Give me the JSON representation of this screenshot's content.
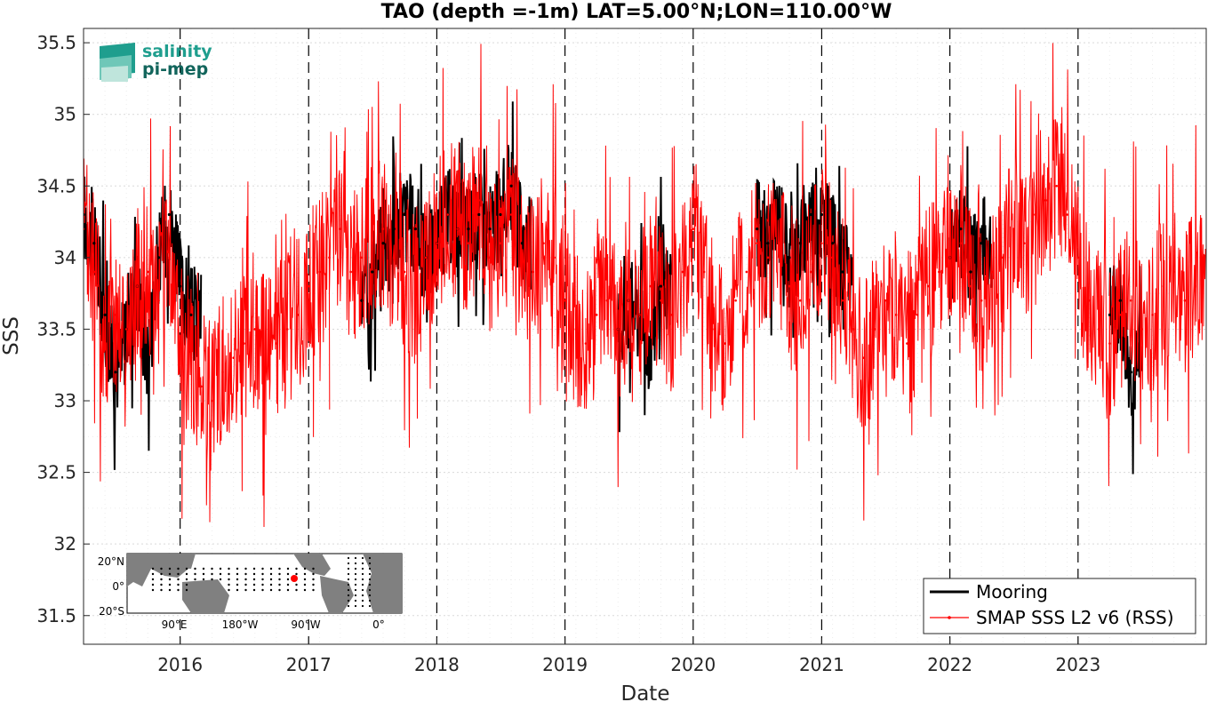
{
  "chart_data": {
    "type": "line",
    "title": "TAO (depth =-1m) LAT=5.00°N;LON=110.00°W",
    "xlabel": "Date",
    "ylabel": "SSS",
    "xlim": [
      "2015-04-01",
      "2024-01-01"
    ],
    "ylim": [
      31.3,
      35.6
    ],
    "x_ticks": [
      "2016",
      "2017",
      "2018",
      "2019",
      "2020",
      "2021",
      "2022",
      "2023"
    ],
    "y_ticks": [
      "31.5",
      "32",
      "32.5",
      "33",
      "33.5",
      "34",
      "34.5",
      "35",
      "35.5"
    ],
    "year_boundaries": [
      "2016-01-01",
      "2017-01-01",
      "2018-01-01",
      "2019-01-01",
      "2020-01-01",
      "2021-01-01",
      "2022-01-01",
      "2023-01-01"
    ],
    "grid": true,
    "legend_position": "bottom-right",
    "series": [
      {
        "name": "Mooring",
        "color": "#000000",
        "x": [
          "2015-04-01",
          "2015-05-01",
          "2015-06-01",
          "2015-07-01",
          "2015-08-01",
          "2015-09-01",
          "2015-10-01",
          "2015-11-01",
          "2015-12-01",
          "2016-01-01",
          "2016-02-01",
          "2017-06-01",
          "2017-07-01",
          "2017-08-01",
          "2017-09-01",
          "2017-10-01",
          "2017-11-01",
          "2017-12-01",
          "2018-01-01",
          "2018-02-01",
          "2018-03-01",
          "2018-04-01",
          "2018-05-01",
          "2018-06-01",
          "2018-07-01",
          "2018-08-01",
          "2018-09-01",
          "2019-06-01",
          "2019-07-01",
          "2019-08-01",
          "2019-09-01",
          "2019-10-01",
          "2020-07-01",
          "2020-08-01",
          "2020-09-01",
          "2020-10-01",
          "2020-11-01",
          "2020-12-01",
          "2021-01-01",
          "2021-02-01",
          "2021-03-01",
          "2022-01-01",
          "2022-02-01",
          "2022-03-01",
          "2022-04-01",
          "2023-04-01",
          "2023-05-01",
          "2023-06-01"
        ],
        "y": [
          34.3,
          34.1,
          33.6,
          33.2,
          33.5,
          33.8,
          33.3,
          34.0,
          34.3,
          33.8,
          33.6,
          33.7,
          33.9,
          34.1,
          34.2,
          34.3,
          34.2,
          34.0,
          34.1,
          34.3,
          34.2,
          34.2,
          34.3,
          34.2,
          34.3,
          34.5,
          34.1,
          33.5,
          33.7,
          33.6,
          33.4,
          33.8,
          34.2,
          34.1,
          34.3,
          34.0,
          34.1,
          34.3,
          34.3,
          34.1,
          33.9,
          34.0,
          34.2,
          33.9,
          34.1,
          33.6,
          33.7,
          33.2
        ]
      },
      {
        "name": "SMAP SSS L2 v6 (RSS)",
        "color": "#ff0000",
        "x": [
          "2015-04-01",
          "2015-05-01",
          "2015-06-01",
          "2015-07-01",
          "2015-08-01",
          "2015-09-01",
          "2015-10-01",
          "2015-11-01",
          "2015-12-01",
          "2016-01-01",
          "2016-02-01",
          "2016-03-01",
          "2016-04-01",
          "2016-05-01",
          "2016-06-01",
          "2016-07-01",
          "2016-08-01",
          "2016-09-01",
          "2016-10-01",
          "2016-11-01",
          "2016-12-01",
          "2017-01-01",
          "2017-02-01",
          "2017-03-01",
          "2017-04-01",
          "2017-05-01",
          "2017-06-01",
          "2017-07-01",
          "2017-08-01",
          "2017-09-01",
          "2017-10-01",
          "2017-11-01",
          "2017-12-01",
          "2018-01-01",
          "2018-02-01",
          "2018-03-01",
          "2018-04-01",
          "2018-05-01",
          "2018-06-01",
          "2018-07-01",
          "2018-08-01",
          "2018-09-01",
          "2018-10-01",
          "2018-11-01",
          "2018-12-01",
          "2019-01-01",
          "2019-02-01",
          "2019-03-01",
          "2019-04-01",
          "2019-05-01",
          "2019-06-01",
          "2019-07-01",
          "2019-08-01",
          "2019-09-01",
          "2019-10-01",
          "2019-11-01",
          "2019-12-01",
          "2020-01-01",
          "2020-02-01",
          "2020-03-01",
          "2020-04-01",
          "2020-05-01",
          "2020-06-01",
          "2020-07-01",
          "2020-08-01",
          "2020-09-01",
          "2020-10-01",
          "2020-11-01",
          "2020-12-01",
          "2021-01-01",
          "2021-02-01",
          "2021-03-01",
          "2021-04-01",
          "2021-05-01",
          "2021-06-01",
          "2021-07-01",
          "2021-08-01",
          "2021-09-01",
          "2021-10-01",
          "2021-11-01",
          "2021-12-01",
          "2022-01-01",
          "2022-02-01",
          "2022-03-01",
          "2022-04-01",
          "2022-05-01",
          "2022-06-01",
          "2022-07-01",
          "2022-08-01",
          "2022-09-01",
          "2022-10-01",
          "2022-11-01",
          "2022-12-01",
          "2023-01-01",
          "2023-02-01",
          "2023-03-01",
          "2023-04-01",
          "2023-05-01",
          "2023-06-01",
          "2023-07-01",
          "2023-08-01",
          "2023-09-01",
          "2023-10-01",
          "2023-11-01",
          "2023-12-01"
        ],
        "y": [
          34.2,
          33.9,
          33.4,
          33.6,
          33.5,
          33.8,
          33.9,
          33.7,
          34.0,
          33.4,
          33.3,
          33.1,
          33.0,
          33.2,
          33.3,
          33.4,
          33.5,
          33.3,
          33.4,
          33.5,
          33.6,
          33.8,
          33.9,
          34.0,
          34.2,
          33.9,
          34.0,
          34.1,
          34.2,
          34.0,
          33.9,
          33.8,
          34.0,
          34.1,
          34.3,
          34.2,
          34.1,
          34.4,
          34.0,
          34.1,
          34.3,
          34.0,
          33.9,
          34.1,
          34.0,
          33.7,
          33.5,
          33.4,
          33.6,
          33.7,
          33.5,
          33.7,
          33.6,
          33.8,
          33.7,
          33.6,
          33.9,
          34.2,
          33.9,
          33.5,
          33.4,
          33.7,
          33.9,
          34.1,
          34.0,
          34.1,
          33.8,
          33.7,
          33.9,
          34.1,
          34.0,
          33.7,
          33.5,
          33.3,
          33.5,
          33.7,
          33.6,
          33.4,
          33.6,
          33.8,
          33.9,
          34.0,
          34.1,
          33.8,
          33.7,
          33.9,
          34.0,
          34.2,
          34.1,
          34.3,
          34.4,
          34.5,
          34.3,
          34.0,
          33.7,
          33.5,
          33.4,
          33.6,
          33.7,
          33.5,
          33.6,
          33.8,
          33.9,
          33.7,
          33.8
        ]
      }
    ],
    "logo": {
      "line1": "salinity",
      "line2": "pi-mep"
    },
    "inset_map": {
      "lat_labels": [
        "20°N",
        "0°",
        "20°S"
      ],
      "lon_labels": [
        "90°E",
        "180°W",
        "90°W",
        "0°"
      ],
      "marker_color": "#ff0000"
    }
  }
}
